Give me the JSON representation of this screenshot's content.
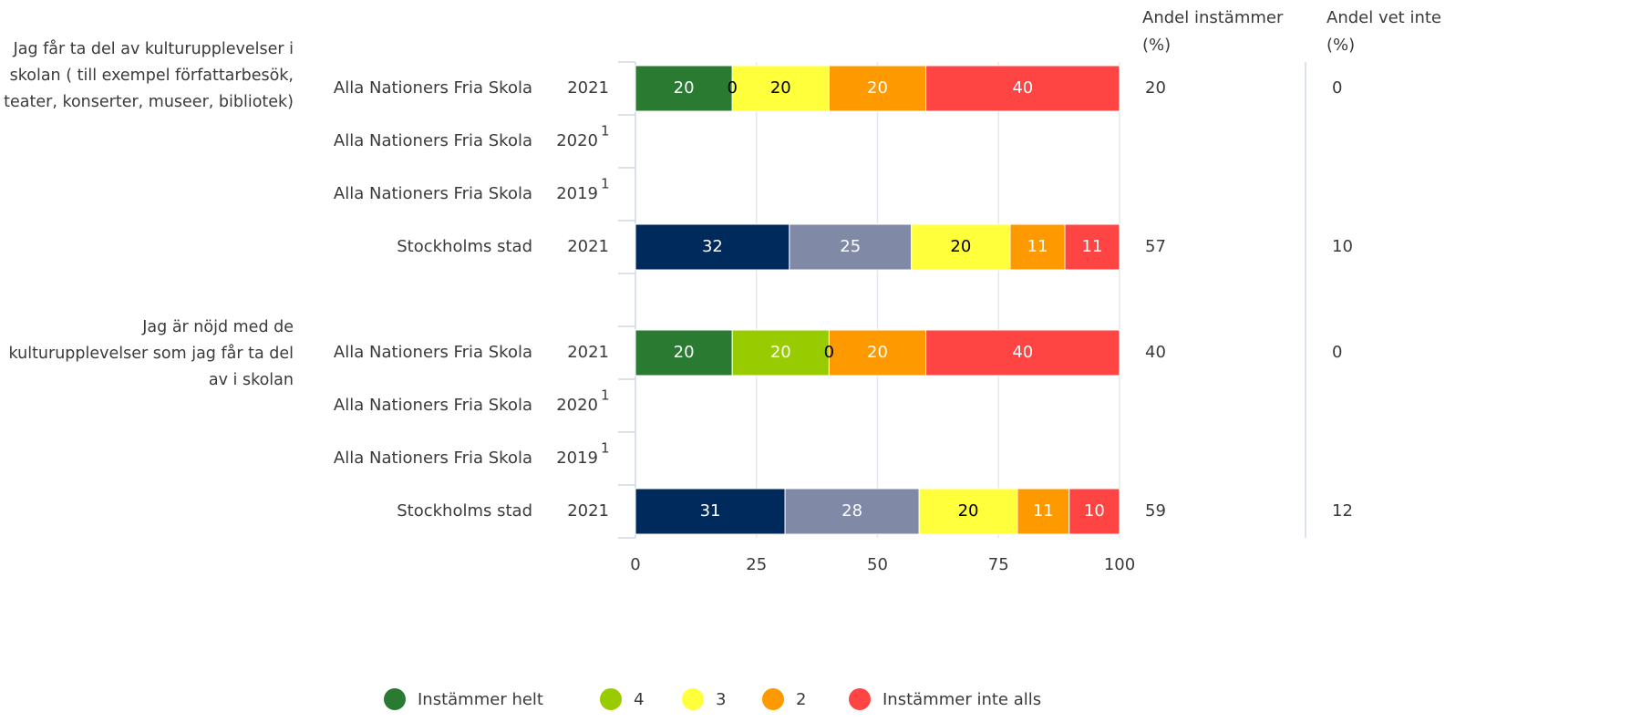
{
  "chart_data": {
    "type": "bar",
    "orientation": "horizontal",
    "stacked": true,
    "xlim": [
      0,
      100
    ],
    "xticks": [
      0,
      25,
      50,
      75,
      100
    ],
    "grid": true,
    "legend_position": "bottom",
    "legend": [
      {
        "name": "Instämmer helt",
        "color": "#2a7a32"
      },
      {
        "name": "4",
        "color": "#99cc00"
      },
      {
        "name": "3",
        "color": "#ffff3c"
      },
      {
        "name": "2",
        "color": "#ff9900"
      },
      {
        "name": "Instämmer inte alls",
        "color": "#ff4444"
      }
    ],
    "column_titles": [
      "Andel instämmer (%)",
      "Andel vet inte (%)"
    ],
    "groups": [
      {
        "title": "Jag får ta del av kulturupplevelser i skolan ( till exempel författarbesök, teater, konserter, museer, bibliotek)",
        "categories": [
          "Alla Nationers Fria Skola",
          "Alla Nationers Fria Skola",
          "Alla Nationers Fria Skola",
          "Stockholms stad"
        ],
        "years": [
          "2021",
          "2020",
          "2019",
          "2021"
        ],
        "year_notes": [
          null,
          "1",
          "1",
          null
        ],
        "series": [
          {
            "values": [
              20,
              null,
              null,
              31.8
            ],
            "value_labels": [
              "20",
              null,
              null,
              "32"
            ],
            "colors": [
              "#2a7a32",
              null,
              null,
              "#002a5c"
            ]
          },
          {
            "values": [
              0,
              null,
              null,
              25.2
            ],
            "value_labels": [
              "0",
              null,
              null,
              "25"
            ],
            "colors": [
              "#99cc00",
              null,
              null,
              "#8089a6"
            ]
          },
          {
            "values": [
              20,
              null,
              null,
              20.4
            ],
            "value_labels": [
              "20",
              null,
              null,
              "20"
            ],
            "colors": [
              "#ffff3c",
              null,
              null,
              "#ffff3c"
            ]
          },
          {
            "values": [
              20,
              null,
              null,
              11.3
            ],
            "value_labels": [
              "20",
              null,
              null,
              "11"
            ],
            "colors": [
              "#ff9900",
              null,
              null,
              "#ff9900"
            ]
          },
          {
            "values": [
              40,
              null,
              null,
              11.3
            ],
            "value_labels": [
              "40",
              null,
              null,
              "11"
            ],
            "colors": [
              "#ff4444",
              null,
              null,
              "#ff4444"
            ]
          }
        ],
        "share_agree": [
          20,
          null,
          null,
          57
        ],
        "share_dont_know": [
          0,
          null,
          null,
          10
        ]
      },
      {
        "title": "Jag är nöjd med de kulturupplevelser som jag får ta del av i skolan",
        "categories": [
          "Alla Nationers Fria Skola",
          "Alla Nationers Fria Skola",
          "Alla Nationers Fria Skola",
          "Stockholms stad"
        ],
        "years": [
          "2021",
          "2020",
          "2019",
          "2021"
        ],
        "year_notes": [
          null,
          "1",
          "1",
          null
        ],
        "series": [
          {
            "values": [
              20,
              null,
              null,
              30.9
            ],
            "value_labels": [
              "20",
              null,
              null,
              "31"
            ],
            "colors": [
              "#2a7a32",
              null,
              null,
              "#002a5c"
            ]
          },
          {
            "values": [
              20,
              null,
              null,
              27.7
            ],
            "value_labels": [
              "20",
              null,
              null,
              "28"
            ],
            "colors": [
              "#99cc00",
              null,
              null,
              "#8089a6"
            ]
          },
          {
            "values": [
              0,
              null,
              null,
              20.3
            ],
            "value_labels": [
              "0",
              null,
              null,
              "20"
            ],
            "colors": [
              "#ffff3c",
              null,
              null,
              "#ffff3c"
            ]
          },
          {
            "values": [
              20,
              null,
              null,
              10.7
            ],
            "value_labels": [
              "20",
              null,
              null,
              "11"
            ],
            "colors": [
              "#ff9900",
              null,
              null,
              "#ff9900"
            ]
          },
          {
            "values": [
              40,
              null,
              null,
              10.4
            ],
            "value_labels": [
              "40",
              null,
              null,
              "10"
            ],
            "colors": [
              "#ff4444",
              null,
              null,
              "#ff4444"
            ]
          }
        ],
        "share_agree": [
          40,
          null,
          null,
          59
        ],
        "share_dont_know": [
          0,
          null,
          null,
          12
        ]
      }
    ]
  }
}
